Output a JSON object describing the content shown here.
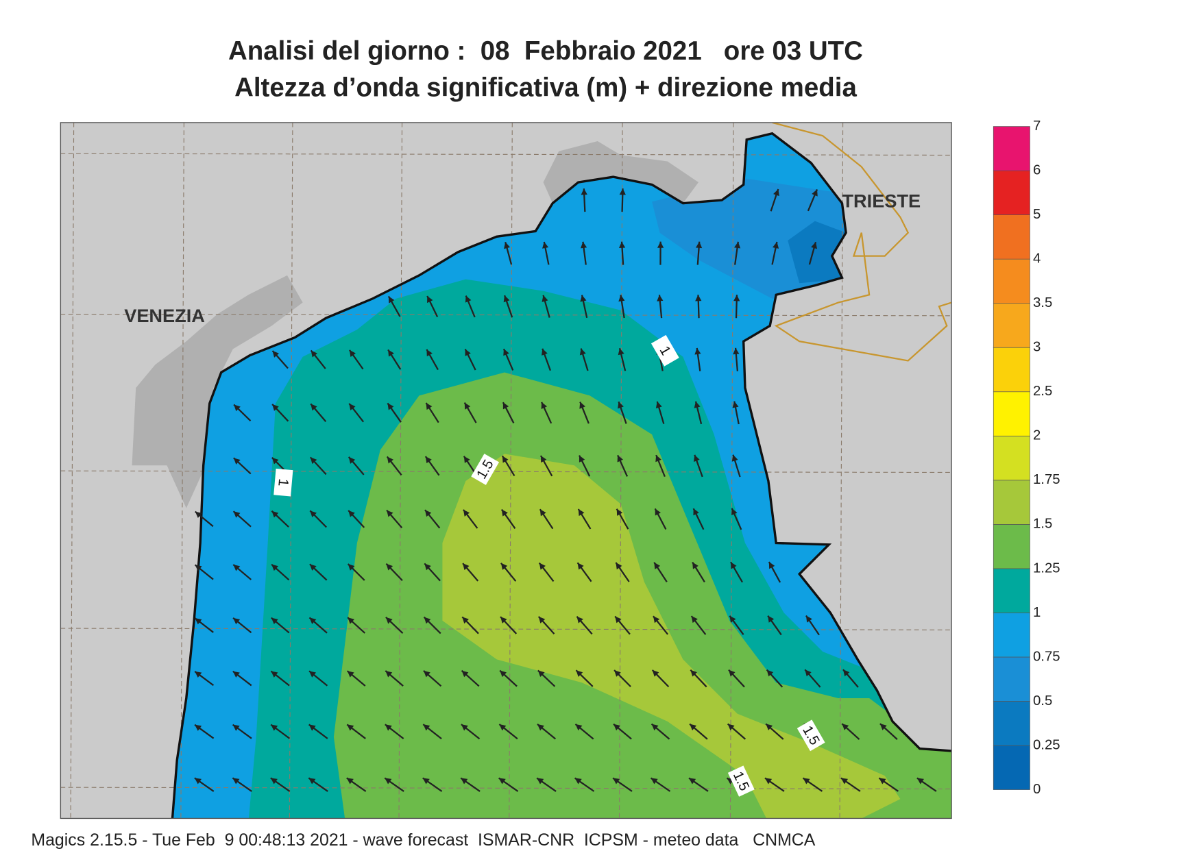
{
  "header": {
    "title": "Analisi del giorno :  08  Febbraio 2021   ore 03 UTC",
    "subtitle": "Altezza d’onda significativa (m) + direzione media"
  },
  "map": {
    "places": [
      {
        "label": "VENEZIA"
      },
      {
        "label": "TRIESTE"
      }
    ],
    "contour_labels": [
      1,
      1.5,
      1,
      1.5,
      1.5
    ]
  },
  "colorbar": {
    "levels": [
      0,
      0.25,
      0.5,
      0.75,
      1,
      1.25,
      1.5,
      1.75,
      2,
      2.5,
      3,
      3.5,
      4,
      5,
      6,
      7
    ],
    "colors": [
      "#0568b3",
      "#0b7ac0",
      "#1a8fd6",
      "#0fa0e2",
      "#00a99d",
      "#6cbb4a",
      "#a6c83a",
      "#d4e021",
      "#fff200",
      "#fbd10a",
      "#f7a81c",
      "#f58c1e",
      "#f07020",
      "#e52222",
      "#e8146e"
    ]
  },
  "footer": "Magics 2.15.5 - Tue Feb  9 00:48:13 2021 - wave forecast  ISMAR-CNR  ICPSM - meteo data   CNMCA"
}
